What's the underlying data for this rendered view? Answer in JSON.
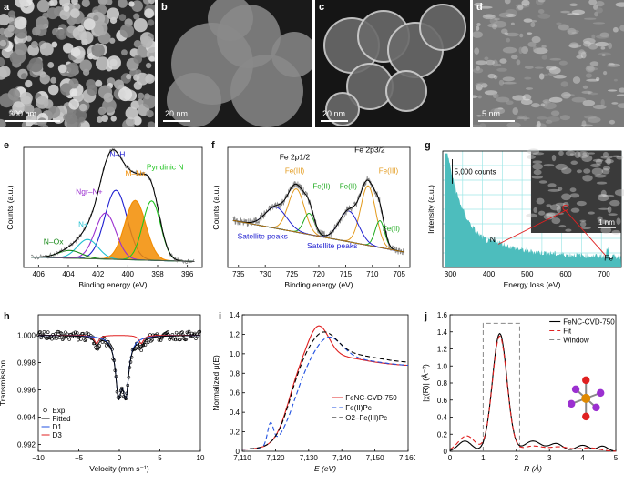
{
  "figure": {
    "panel_labels": [
      "a",
      "b",
      "c",
      "d",
      "e",
      "f",
      "g",
      "h",
      "i",
      "j"
    ],
    "scale_bars": {
      "a": "300 nm",
      "b": "20 nm",
      "c": "20 nm",
      "d": "5 nm",
      "g_inset": "1 nm"
    }
  },
  "colors": {
    "nh": "#1f1fd0",
    "mn": "#f28c00",
    "pyridinic": "#22c422",
    "ngr": "#9b30d0",
    "noxide": "#1a8a1a",
    "graphitic": "#20c0d0",
    "exp_gray": "#888888",
    "fe3": "#e39a1c",
    "fe2": "#1faa1f",
    "satellite": "#2020d0",
    "teal": "#4dbdbd",
    "red": "#e02020",
    "blue": "#2050e0"
  },
  "chart_data": [
    {
      "panel": "e",
      "type": "line",
      "xlabel": "Binding energy (eV)",
      "ylabel": "Counts (a.u.)",
      "xlim": [
        407,
        395
      ],
      "xticks": [
        "406",
        "404",
        "402",
        "400",
        "398",
        "396"
      ],
      "annotations": [
        "N–H",
        "M–Nx",
        "Pyridinic N",
        "Ngr–N+",
        "N+",
        "N–Ox"
      ],
      "peaks": [
        {
          "name": "N–H",
          "center": 400.8,
          "height": 0.72,
          "width": 0.75
        },
        {
          "name": "M–Nx",
          "center": 399.5,
          "height": 0.62,
          "width": 0.7
        },
        {
          "name": "Pyridinic N",
          "center": 398.4,
          "height": 0.62,
          "width": 0.6
        },
        {
          "name": "Ngr–N+",
          "center": 401.5,
          "height": 0.48,
          "width": 0.7
        },
        {
          "name": "N+",
          "center": 402.7,
          "height": 0.2,
          "width": 0.7
        },
        {
          "name": "N–Ox",
          "center": 403.9,
          "height": 0.08,
          "width": 0.8
        }
      ]
    },
    {
      "panel": "f",
      "type": "line",
      "xlabel": "Binding energy (eV)",
      "ylabel": "Counts (a.u.)",
      "xlim": [
        737,
        703
      ],
      "xticks": [
        "735",
        "730",
        "725",
        "720",
        "715",
        "710",
        "705"
      ],
      "annotations": [
        "Fe 2p1/2",
        "Fe 2p3/2",
        "Fe(III)",
        "Fe(II)",
        "Fe(III)",
        "Fe(II)",
        "Fe(II)",
        "Satellite peaks",
        "Satellite peaks"
      ],
      "peaks": [
        {
          "name": "Fe(III) 2p3/2",
          "center": 710.8,
          "height": 0.62,
          "width": 1.4,
          "kind": "fe3"
        },
        {
          "name": "Fe(II) 2p3/2",
          "center": 708.6,
          "height": 0.28,
          "width": 0.9,
          "kind": "fe2"
        },
        {
          "name": "Fe(III) 2p1/2",
          "center": 724.2,
          "height": 0.45,
          "width": 1.5,
          "kind": "fe3"
        },
        {
          "name": "Fe(II) 2p1/2",
          "center": 721.8,
          "height": 0.22,
          "width": 1.0,
          "kind": "fe2"
        },
        {
          "name": "Sat 2p3/2",
          "center": 714.4,
          "height": 0.32,
          "width": 1.8,
          "kind": "sat"
        },
        {
          "name": "Sat 2p1/2",
          "center": 728.0,
          "height": 0.22,
          "width": 2.0,
          "kind": "sat"
        }
      ]
    },
    {
      "panel": "g",
      "type": "area",
      "xlabel": "Energy loss (eV)",
      "ylabel": "Intensity (a.u.)",
      "xlim": [
        280,
        745
      ],
      "xticks": [
        "300",
        "400",
        "500",
        "600",
        "700"
      ],
      "annotations": [
        "5,000 counts",
        "N",
        "Fe"
      ]
    },
    {
      "panel": "h",
      "type": "scatter",
      "xlabel": "Velocity (mm s⁻¹)",
      "ylabel": "Transmission",
      "xlim": [
        -10,
        10
      ],
      "ylim": [
        0.9915,
        1.0015
      ],
      "xticks": [
        "−10",
        "−5",
        "0",
        "5",
        "10"
      ],
      "yticks": [
        "0.992",
        "0.994",
        "0.996",
        "0.998",
        "1.000"
      ],
      "legend": [
        "Exp.",
        "Fitted",
        "D1",
        "D3"
      ],
      "legend_position": "bottom-left",
      "doublets": [
        {
          "name": "D1",
          "lines": [
            -0.1,
            0.8
          ],
          "depth": 0.0039
        },
        {
          "name": "D3",
          "lines": [
            -2.8,
            2.7
          ],
          "depth": 0.0006
        }
      ]
    },
    {
      "panel": "i",
      "type": "line",
      "xlabel": "E (eV)",
      "ylabel": "Normalized μ(E)",
      "xlim": [
        7110,
        7160
      ],
      "ylim": [
        0,
        1.4
      ],
      "xticks": [
        "7,110",
        "7,120",
        "7,130",
        "7,140",
        "7,150",
        "7,160"
      ],
      "yticks": [
        "0",
        "0.2",
        "0.4",
        "0.6",
        "0.8",
        "1.0",
        "1.2",
        "1.4"
      ],
      "legend": [
        "FeNC-CVD-750",
        "Fe(II)Pc",
        "O2–Fe(III)Pc"
      ],
      "legend_position": "bottom-right"
    },
    {
      "panel": "j",
      "type": "line",
      "xlabel": "R (Å)",
      "ylabel": "|χ(R)| (Å⁻³)",
      "xlim": [
        0,
        5
      ],
      "ylim": [
        0,
        1.6
      ],
      "xticks": [
        "0",
        "1",
        "2",
        "3",
        "4",
        "5"
      ],
      "yticks": [
        "0",
        "0.2",
        "0.4",
        "0.6",
        "0.8",
        "1.0",
        "1.2",
        "1.4",
        "1.6"
      ],
      "legend": [
        "FeNC-CVD-750",
        "Fit",
        "Window"
      ],
      "legend_position": "top-right",
      "window": [
        1.0,
        2.1
      ]
    }
  ]
}
